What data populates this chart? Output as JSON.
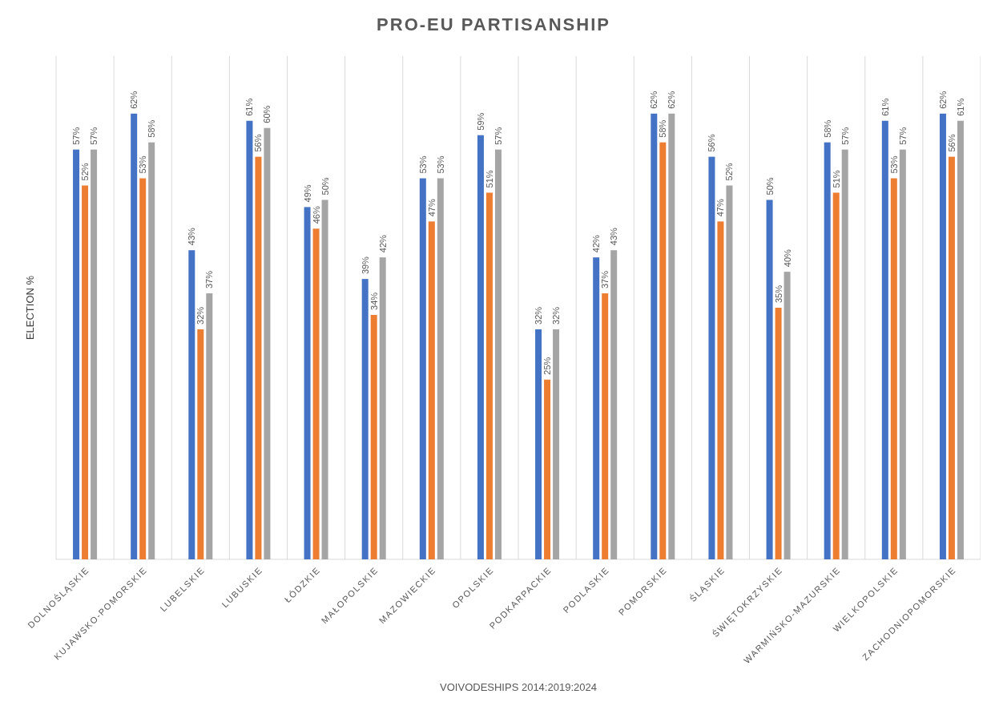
{
  "chart_data": {
    "type": "bar",
    "title": "PRO-EU PARTISANSHIP",
    "xlabel": "VOIVODESHIPS 2014:2019:2024",
    "ylabel": "ELECTION %",
    "categories": [
      "DOLNOŚLĄSKIE",
      "KUJAWSKO-POMORSKIE",
      "LUBELSKIE",
      "LUBUSKIE",
      "ŁÓDZKIE",
      "MAŁOPOLSKIE",
      "MAZOWIECKIE",
      "OPOLSKIE",
      "PODKARPACKIE",
      "PODLASKIE",
      "POMORSKIE",
      "ŚLĄSKIE",
      "ŚWIĘTOKRZYSKIE",
      "WARMIŃSKO-MAZURSKIE",
      "WIELKOPOLSKIE",
      "ZACHODNIOPOMORSKIE"
    ],
    "series": [
      {
        "color": "#4472c4",
        "values": [
          57,
          62,
          43,
          61,
          49,
          39,
          53,
          59,
          32,
          42,
          62,
          56,
          50,
          58,
          61,
          62
        ],
        "value_labels": [
          "57%",
          "62%",
          "43%",
          "61%",
          "49%",
          "39%",
          "53%",
          "59%",
          "32%",
          "42%",
          "62%",
          "56%",
          "50%",
          "58%",
          "61%",
          "62%"
        ]
      },
      {
        "color": "#ed7d31",
        "values": [
          52,
          53,
          32,
          56,
          46,
          34,
          47,
          51,
          25,
          37,
          58,
          47,
          35,
          51,
          53,
          56
        ],
        "value_labels": [
          "52%",
          "53%",
          "32%",
          "56%",
          "46%",
          "34%",
          "47%",
          "51%",
          "25%",
          "37%",
          "58%",
          "47%",
          "35%",
          "51%",
          "53%",
          "56%"
        ]
      },
      {
        "color": "#a5a5a5",
        "values": [
          57,
          58,
          37,
          60,
          50,
          42,
          53,
          57,
          32,
          43,
          62,
          52,
          40,
          57,
          57,
          61
        ],
        "value_labels": [
          "57%",
          "58%",
          "37%",
          "60%",
          "50%",
          "42%",
          "53%",
          "57%",
          "32%",
          "43%",
          "62%",
          "52%",
          "40%",
          "57%",
          "57%",
          "61%"
        ]
      }
    ],
    "ylim": [
      0,
      70
    ],
    "tick_labels": "x",
    "grid": "x"
  }
}
